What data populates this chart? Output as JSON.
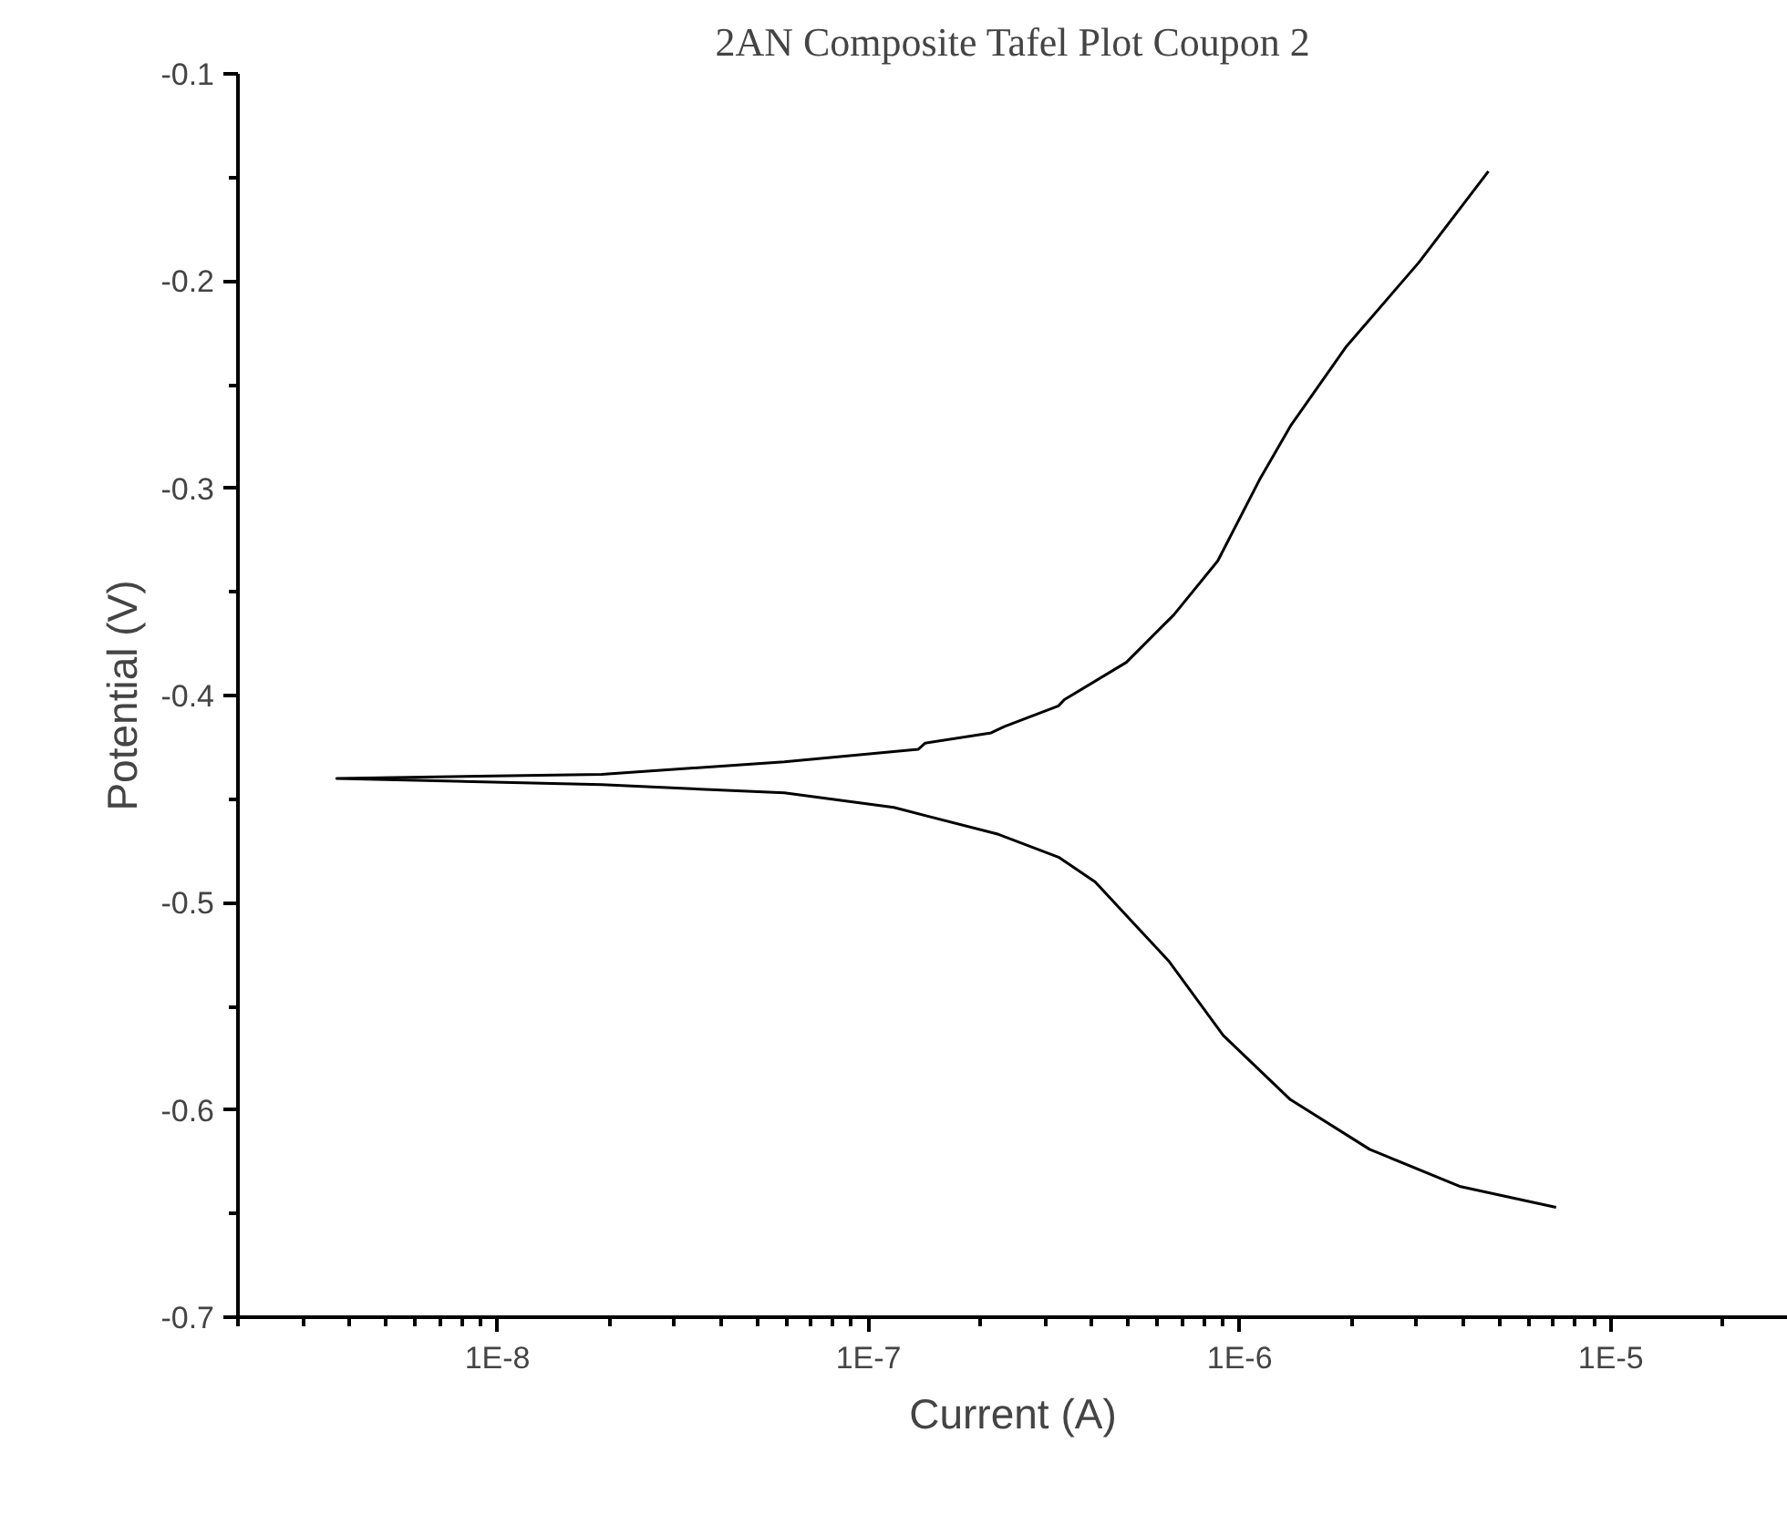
{
  "chart_data": {
    "type": "line",
    "title": "2AN Composite Tafel Plot Coupon 2",
    "xlabel": "Current (A)",
    "ylabel": "Potential (V)",
    "log": "x",
    "xlim": [
      2e-09,
      3e-05
    ],
    "ylim": [
      -0.7,
      -0.1
    ],
    "xticks": [
      {
        "value": 1e-08,
        "label": "1E-8"
      },
      {
        "value": 1e-07,
        "label": "1E-7"
      },
      {
        "value": 1e-06,
        "label": "1E-6"
      },
      {
        "value": 1e-05,
        "label": "1E-5"
      }
    ],
    "yticks": [
      -0.7,
      -0.6,
      -0.5,
      -0.4,
      -0.3,
      -0.2,
      -0.1
    ],
    "marker": "none",
    "line_style": "solid",
    "series": [
      {
        "color": "#000000",
        "x": [
          7.12e-06,
          3.94e-06,
          2.24e-06,
          1.37e-06,
          9.03e-07,
          6.43e-07,
          4.08e-07,
          3.25e-07,
          2.24e-07,
          1.17e-07,
          5.93e-08,
          1.91e-08,
          3.69e-09,
          1.91e-08,
          5.93e-08,
          1.36e-07,
          1.42e-07,
          2.14e-07,
          2.32e-07,
          3.25e-07,
          3.37e-07,
          4.95e-07,
          6.65e-07,
          8.73e-07,
          1.13e-06,
          1.37e-06,
          1.93e-06,
          3.04e-06,
          4.68e-06
        ],
        "values": [
          -0.647,
          -0.637,
          -0.619,
          -0.595,
          -0.564,
          -0.528,
          -0.49,
          -0.478,
          -0.467,
          -0.454,
          -0.447,
          -0.443,
          -0.44,
          -0.438,
          -0.432,
          -0.426,
          -0.423,
          -0.418,
          -0.415,
          -0.405,
          -0.402,
          -0.384,
          -0.361,
          -0.335,
          -0.296,
          -0.27,
          -0.232,
          -0.191,
          -0.147
        ]
      }
    ]
  }
}
